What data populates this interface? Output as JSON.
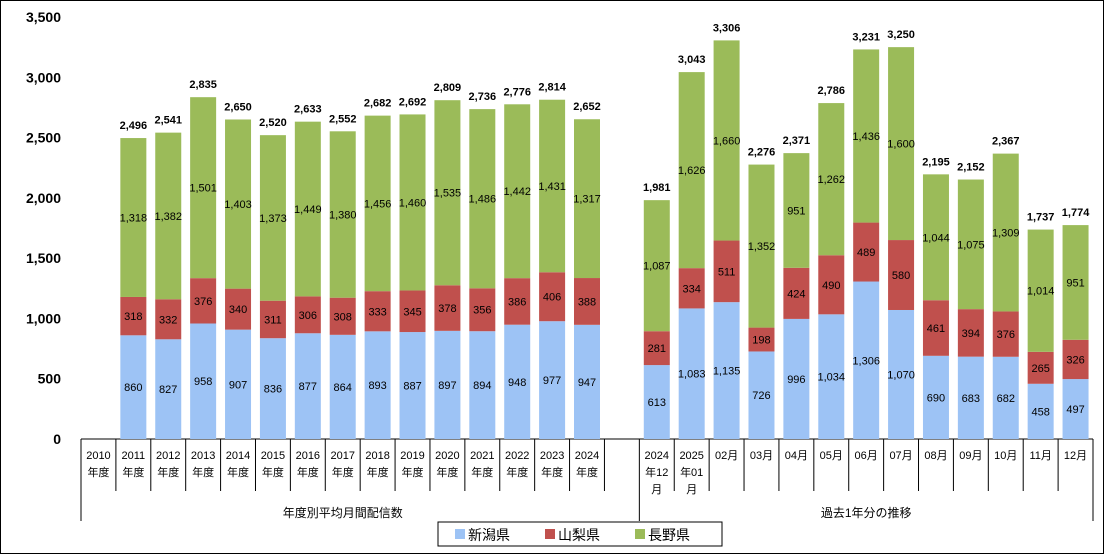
{
  "chart_data": {
    "type": "bar",
    "stacked": true,
    "ylim": [
      0,
      3500
    ],
    "yticks": [
      "0",
      "500",
      "1,000",
      "1,500",
      "2,000",
      "2,500",
      "3,000",
      "3,500"
    ],
    "ytick_values": [
      0,
      500,
      1000,
      1500,
      2000,
      2500,
      3000,
      3500
    ],
    "categories": [
      [
        "2010",
        "年度"
      ],
      [
        "2011",
        "年度"
      ],
      [
        "2012",
        "年度"
      ],
      [
        "2013",
        "年度"
      ],
      [
        "2014",
        "年度"
      ],
      [
        "2015",
        "年度"
      ],
      [
        "2016",
        "年度"
      ],
      [
        "2017",
        "年度"
      ],
      [
        "2018",
        "年度"
      ],
      [
        "2019",
        "年度"
      ],
      [
        "2020",
        "年度"
      ],
      [
        "2021",
        "年度"
      ],
      [
        "2022",
        "年度"
      ],
      [
        "2023",
        "年度"
      ],
      [
        "2024",
        "年度"
      ],
      [
        ""
      ],
      [
        "2024",
        "年12",
        "月"
      ],
      [
        "2025",
        "年01",
        "月"
      ],
      [
        "02月"
      ],
      [
        "03月"
      ],
      [
        "04月"
      ],
      [
        "05月"
      ],
      [
        "06月"
      ],
      [
        "07月"
      ],
      [
        "08月"
      ],
      [
        "09月"
      ],
      [
        "10月"
      ],
      [
        "11月"
      ],
      [
        "12月"
      ]
    ],
    "groups": [
      {
        "label": "年度別平均月間配信数",
        "from": 0,
        "to": 15
      },
      {
        "label": "過去1年分の推移",
        "to": 29,
        "from": 16
      }
    ],
    "series": [
      {
        "name": "新潟県",
        "color": "#9DC3F5",
        "values": [
          null,
          860,
          827,
          958,
          907,
          836,
          877,
          864,
          893,
          887,
          897,
          894,
          948,
          977,
          947,
          null,
          613,
          1083,
          1135,
          726,
          996,
          1034,
          1306,
          1070,
          690,
          683,
          682,
          458,
          497
        ]
      },
      {
        "name": "山梨県",
        "color": "#C0504D",
        "values": [
          null,
          318,
          332,
          376,
          340,
          311,
          306,
          308,
          333,
          345,
          378,
          356,
          386,
          406,
          388,
          null,
          281,
          334,
          511,
          198,
          424,
          490,
          489,
          580,
          461,
          394,
          376,
          265,
          326
        ]
      },
      {
        "name": "長野県",
        "color": "#9BBB59",
        "values": [
          null,
          1318,
          1382,
          1501,
          1403,
          1373,
          1449,
          1380,
          1456,
          1460,
          1535,
          1486,
          1442,
          1431,
          1317,
          null,
          1087,
          1626,
          1660,
          1352,
          951,
          1262,
          1436,
          1600,
          1044,
          1075,
          1309,
          1014,
          951
        ]
      }
    ],
    "totals": [
      null,
      2496,
      2541,
      2835,
      2650,
      2520,
      2633,
      2552,
      2682,
      2692,
      2809,
      2736,
      2776,
      2814,
      2652,
      null,
      1981,
      3043,
      3306,
      2276,
      2371,
      2786,
      3231,
      3250,
      2195,
      2152,
      2367,
      1737,
      1774
    ],
    "legend_position": "bottom-center",
    "grid": false
  }
}
